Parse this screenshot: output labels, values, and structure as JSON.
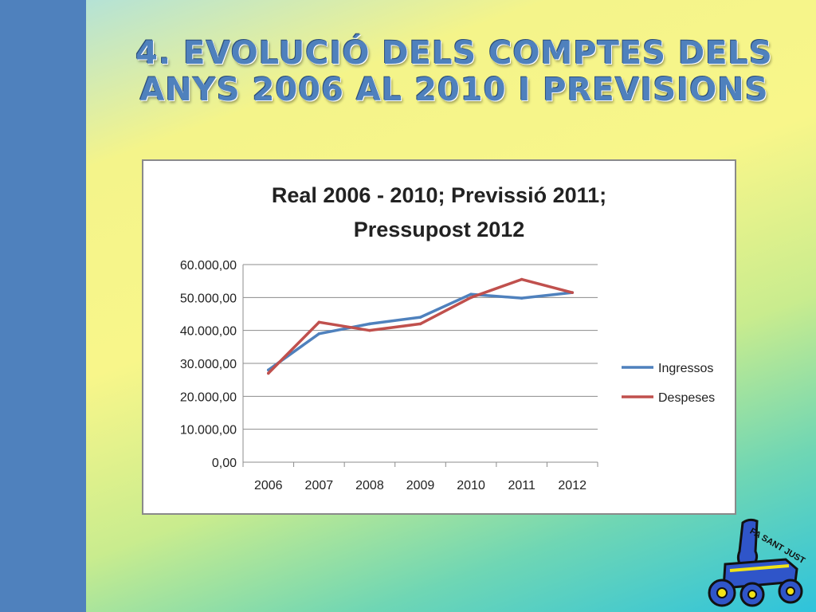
{
  "slide": {
    "title_line1": "4. Evolució dels  comptes dels",
    "title_line2": "anys 2006 al 2010 i previsions",
    "logo_text": "FA SANT JUST"
  },
  "colors": {
    "sidebar": "#4f81bd",
    "ingressos": "#4f81bd",
    "despeses": "#c0504d"
  },
  "chart_data": {
    "type": "line",
    "title_line1": "Real 2006 - 2010; Previssió 2011;",
    "title_line2": "Pressupost 2012",
    "categories": [
      "2006",
      "2007",
      "2008",
      "2009",
      "2010",
      "2011",
      "2012"
    ],
    "series": [
      {
        "name": "Ingressos",
        "color": "#4f81bd",
        "values": [
          28000,
          39000,
          42000,
          44000,
          51000,
          49800,
          51500
        ]
      },
      {
        "name": "Despeses",
        "color": "#c0504d",
        "values": [
          27000,
          42500,
          40000,
          42000,
          50000,
          55500,
          51500
        ]
      }
    ],
    "ylim": [
      0,
      60000
    ],
    "yticks": [
      0,
      10000,
      20000,
      30000,
      40000,
      50000,
      60000
    ],
    "ytick_labels": [
      "0,00",
      "10.000,00",
      "20.000,00",
      "30.000,00",
      "40.000,00",
      "50.000,00",
      "60.000,00"
    ],
    "grid": true,
    "legend_position": "right"
  }
}
